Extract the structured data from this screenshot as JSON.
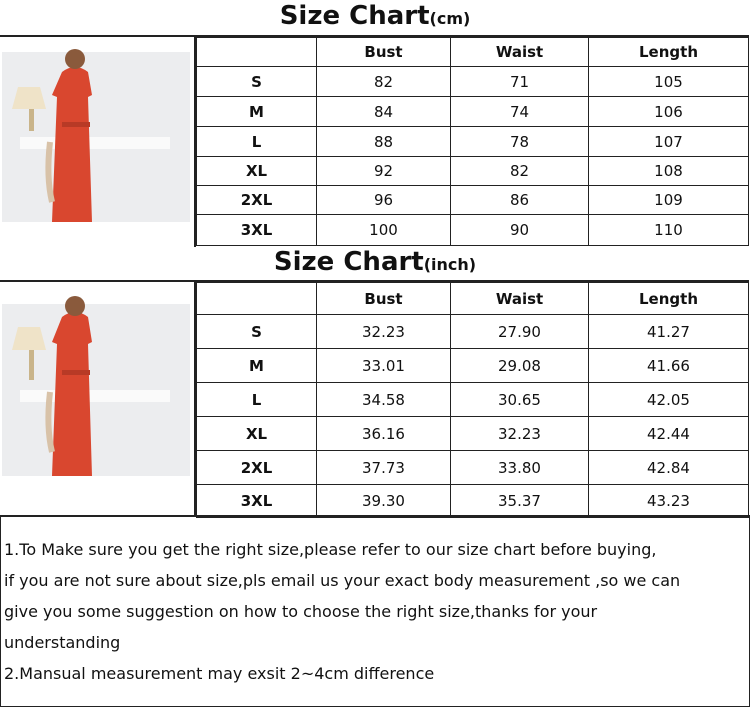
{
  "cm": {
    "title": "Size Chart",
    "unit": "(cm)",
    "headers": [
      "",
      "Bust",
      "Waist",
      "Length"
    ],
    "rows": [
      [
        "S",
        "82",
        "71",
        "105"
      ],
      [
        "M",
        "84",
        "74",
        "106"
      ],
      [
        "L",
        "88",
        "78",
        "107"
      ],
      [
        "XL",
        "92",
        "82",
        "108"
      ],
      [
        "2XL",
        "96",
        "86",
        "109"
      ],
      [
        "3XL",
        "100",
        "90",
        "110"
      ]
    ]
  },
  "inch": {
    "title": "Size Chart",
    "unit": "(inch)",
    "headers": [
      "",
      "Bust",
      "Waist",
      "Length"
    ],
    "rows": [
      [
        "S",
        "32.23",
        "27.90",
        "41.27"
      ],
      [
        "M",
        "33.01",
        "29.08",
        "41.66"
      ],
      [
        "L",
        "34.58",
        "30.65",
        "42.05"
      ],
      [
        "XL",
        "36.16",
        "32.23",
        "42.44"
      ],
      [
        "2XL",
        "37.73",
        "33.80",
        "42.84"
      ],
      [
        "3XL",
        "39.30",
        "35.37",
        "43.23"
      ]
    ]
  },
  "notes": [
    "1.To Make sure you get the right size,please refer to our size chart before buying,",
    "if you are not sure about size,pls email us your exact body measurement ,so we can",
    "give you some suggestion on how to choose the right size,thanks for your",
    "understanding",
    "2.Mansual measurement may exsit 2~4cm difference"
  ],
  "colors": {
    "dress": "#d9472f",
    "border": "#222222"
  }
}
